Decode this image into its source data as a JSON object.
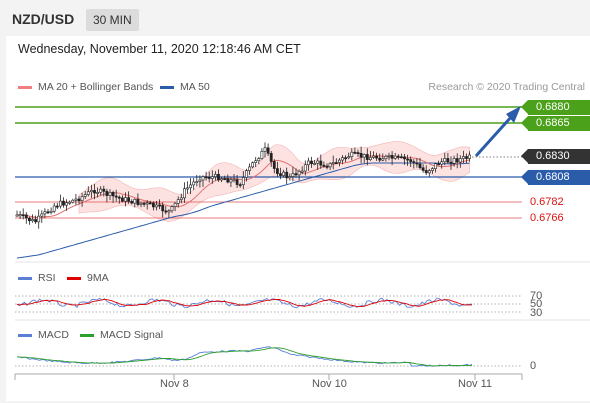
{
  "header": {
    "pair": "NZD/USD",
    "timeframe": "30 MIN",
    "datetime": "Wednesday, November 11, 2020 12:18:46 AM CET"
  },
  "legend": {
    "main": [
      {
        "label": "MA 20 + Bollinger Bands",
        "color": "#f08080"
      },
      {
        "label": "MA 50",
        "color": "#2a5caa"
      }
    ],
    "credit": "Research © 2020 Trading Central",
    "rsi": [
      {
        "label": "RSI",
        "color": "#5b7fd6"
      },
      {
        "label": "9MA",
        "color": "#e00000"
      }
    ],
    "macd": [
      {
        "label": "MACD",
        "color": "#5b7fd6"
      },
      {
        "label": "MACD Signal",
        "color": "#2ca02c"
      }
    ]
  },
  "price_levels": {
    "target2": "0.6880",
    "target1": "0.6865",
    "current": "0.6830",
    "pivot": "0.6808",
    "support1": "0.6782",
    "support2": "0.6766"
  },
  "rsi_axis": {
    "level70": "70",
    "level50": "50",
    "level30": "30"
  },
  "macd_axis": {
    "zero": "0"
  },
  "x_axis": [
    "Nov 8",
    "Nov 10",
    "Nov 11"
  ],
  "colors": {
    "green": "#4ca11a",
    "blue": "#2a5caa",
    "red": "#e03030",
    "current": "#333333",
    "band": "#fde0e0"
  }
}
